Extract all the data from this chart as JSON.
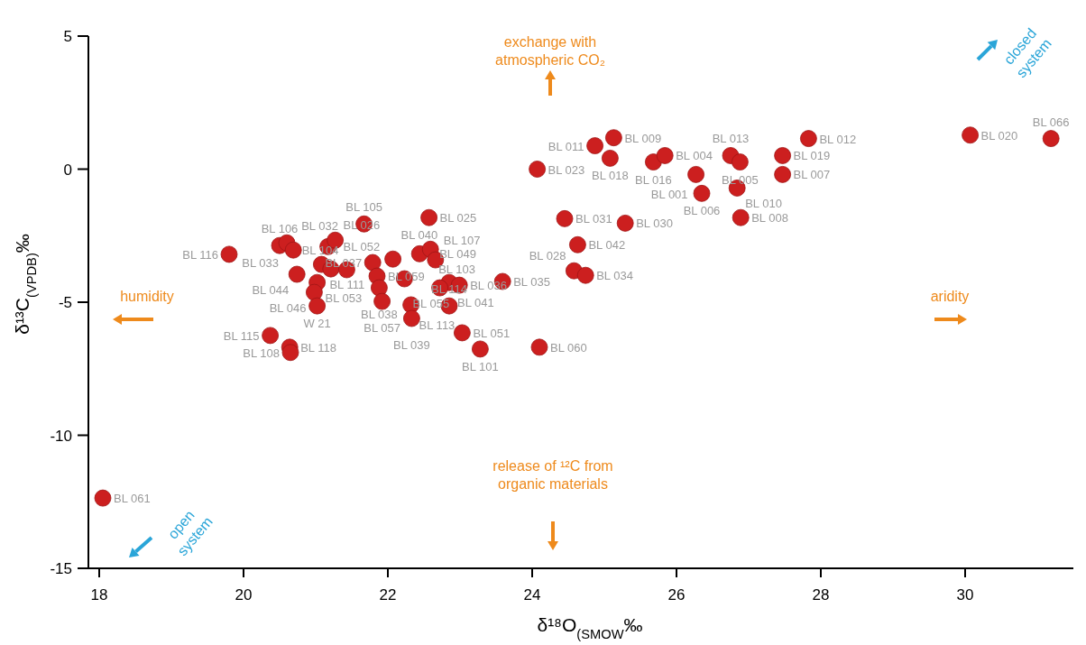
{
  "chart_data": {
    "type": "scatter",
    "xlabel": "δ¹⁸O$_{(SMOW}$‰",
    "ylabel": "δ¹³C$_{(VPDB)}$‰",
    "xlim": [
      17.85,
      31.5
    ],
    "ylim": [
      -15,
      5
    ],
    "xticks": [
      18,
      20,
      22,
      24,
      26,
      28,
      30
    ],
    "yticks": [
      -15,
      -10,
      -5,
      0,
      5
    ],
    "grid": false,
    "legend": false,
    "marker": "circle",
    "series": [
      {
        "color": "#cc1f1f",
        "x": [
          18.05,
          19.8,
          20.5,
          20.6,
          20.69,
          21.17,
          21.27,
          21.67,
          20.74,
          21.08,
          21.21,
          21.43,
          21.02,
          20.98,
          21.02,
          20.37,
          20.64,
          20.65,
          21.79,
          22.07,
          21.85,
          21.88,
          21.92,
          22.23,
          22.32,
          22.33,
          22.44,
          22.59,
          22.66,
          22.57,
          22.85,
          22.72,
          22.99,
          22.85,
          23.03,
          23.28,
          23.59,
          24.1,
          24.45,
          24.63,
          24.58,
          24.74,
          25.29,
          24.07,
          24.87,
          25.13,
          25.08,
          25.68,
          25.84,
          26.27,
          26.35,
          26.75,
          26.88,
          26.84,
          26.89,
          27.47,
          27.47,
          27.83,
          30.07,
          31.19
        ],
        "values": [
          -12.36,
          -3.2,
          -2.87,
          -2.77,
          -3.04,
          -2.91,
          -2.67,
          -2.06,
          -3.95,
          -3.58,
          -3.75,
          -3.78,
          -4.26,
          -4.63,
          -5.14,
          -6.25,
          -6.69,
          -6.89,
          -3.51,
          -3.38,
          -4.02,
          -4.46,
          -4.97,
          -4.12,
          -5.1,
          -5.61,
          -3.18,
          -3.01,
          -3.41,
          -1.82,
          -4.26,
          -4.46,
          -4.36,
          -5.14,
          -6.15,
          -6.76,
          -4.22,
          -6.69,
          -1.86,
          -2.84,
          -3.82,
          -3.99,
          -2.03,
          0.0,
          0.88,
          1.18,
          0.41,
          0.27,
          0.51,
          -0.2,
          -0.91,
          0.51,
          0.27,
          -0.71,
          -1.82,
          0.51,
          -0.2,
          1.15,
          1.28,
          1.15
        ]
      }
    ],
    "annotations": [
      "exchange with atmospheric CO₂",
      "release of ¹²C from organic materials",
      "humidity",
      "aridity",
      "closed system",
      "open system",
      {
        "text": "BL 061",
        "x": 18.05,
        "y": -12.36
      },
      {
        "text": "BL 116",
        "x": 19.8,
        "y": -3.2
      },
      {
        "text": "BL 106",
        "x": 20.5,
        "y": -2.87
      },
      {
        "text": "BL 033",
        "x": 20.6,
        "y": -2.77
      },
      {
        "text": "BL 032",
        "x": 20.69,
        "y": -3.04
      },
      {
        "text": "BL 052",
        "x": 21.17,
        "y": -2.91
      },
      {
        "text": "BL 026",
        "x": 21.27,
        "y": -2.67
      },
      {
        "text": "BL 105",
        "x": 21.67,
        "y": -2.06
      },
      {
        "text": "BL 044",
        "x": 20.74,
        "y": -3.95
      },
      {
        "text": "BL 111",
        "x": 21.08,
        "y": -3.58
      },
      {
        "text": "BL 104",
        "x": 21.43,
        "y": -3.78
      },
      {
        "text": "BL 053",
        "x": 21.02,
        "y": -4.26
      },
      {
        "text": "BL 046",
        "x": 20.98,
        "y": -4.63
      },
      {
        "text": "W 21",
        "x": 21.02,
        "y": -5.14
      },
      {
        "text": "BL 115",
        "x": 20.37,
        "y": -6.25
      },
      {
        "text": "BL 118",
        "x": 20.64,
        "y": -6.69
      },
      {
        "text": "BL 108",
        "x": 20.65,
        "y": -6.89
      },
      {
        "text": "BL 037",
        "x": 21.79,
        "y": -3.51
      },
      {
        "text": "BL 040",
        "x": 22.07,
        "y": -3.38
      },
      {
        "text": "BL 059",
        "x": 21.85,
        "y": -4.02
      },
      {
        "text": "BL 038",
        "x": 21.88,
        "y": -4.46
      },
      {
        "text": "BL 057",
        "x": 21.92,
        "y": -4.97
      },
      {
        "text": "BL 055",
        "x": 22.23,
        "y": -4.12
      },
      {
        "text": "BL 113",
        "x": 22.32,
        "y": -5.1
      },
      {
        "text": "BL 039",
        "x": 22.33,
        "y": -5.61
      },
      {
        "text": "BL 049",
        "x": 22.44,
        "y": -3.18
      },
      {
        "text": "BL 103",
        "x": 22.59,
        "y": -3.01
      },
      {
        "text": "BL 107",
        "x": 22.66,
        "y": -3.41
      },
      {
        "text": "BL 025",
        "x": 22.57,
        "y": -1.82
      },
      {
        "text": "BL 041",
        "x": 22.85,
        "y": -4.26
      },
      {
        "text": "BL 036",
        "x": 22.99,
        "y": -4.36
      },
      {
        "text": "BL 114",
        "x": 22.85,
        "y": -5.14
      },
      {
        "text": "BL 051",
        "x": 23.03,
        "y": -6.15
      },
      {
        "text": "BL 101",
        "x": 23.28,
        "y": -6.76
      },
      {
        "text": "BL 035",
        "x": 23.59,
        "y": -4.22
      },
      {
        "text": "BL 060",
        "x": 24.1,
        "y": -6.69
      },
      {
        "text": "BL 031",
        "x": 24.45,
        "y": -1.86
      },
      {
        "text": "BL 042",
        "x": 24.63,
        "y": -2.84
      },
      {
        "text": "BL 028",
        "x": 24.58,
        "y": -3.82
      },
      {
        "text": "BL 034",
        "x": 24.74,
        "y": -3.99
      },
      {
        "text": "BL 030",
        "x": 25.29,
        "y": -2.03
      },
      {
        "text": "BL 023",
        "x": 24.07,
        "y": 0.0
      },
      {
        "text": "BL 011",
        "x": 24.87,
        "y": 0.88
      },
      {
        "text": "BL 009",
        "x": 25.13,
        "y": 1.18
      },
      {
        "text": "BL 018",
        "x": 25.08,
        "y": 0.41
      },
      {
        "text": "BL 016",
        "x": 25.68,
        "y": 0.27
      },
      {
        "text": "BL 004",
        "x": 25.84,
        "y": 0.51
      },
      {
        "text": "BL 001",
        "x": 26.27,
        "y": -0.2
      },
      {
        "text": "BL 006",
        "x": 26.35,
        "y": -0.91
      },
      {
        "text": "BL 013",
        "x": 26.75,
        "y": 0.51
      },
      {
        "text": "BL 005",
        "x": 26.88,
        "y": 0.27
      },
      {
        "text": "BL 010",
        "x": 26.84,
        "y": -0.71
      },
      {
        "text": "BL 008",
        "x": 26.89,
        "y": -1.82
      },
      {
        "text": "BL 019",
        "x": 27.47,
        "y": 0.51
      },
      {
        "text": "BL 007",
        "x": 27.47,
        "y": -0.2
      },
      {
        "text": "BL 012",
        "x": 27.83,
        "y": 1.15
      },
      {
        "text": "BL 020",
        "x": 30.07,
        "y": 1.28
      },
      {
        "text": "BL 066",
        "x": 31.19,
        "y": 1.15
      }
    ]
  }
}
